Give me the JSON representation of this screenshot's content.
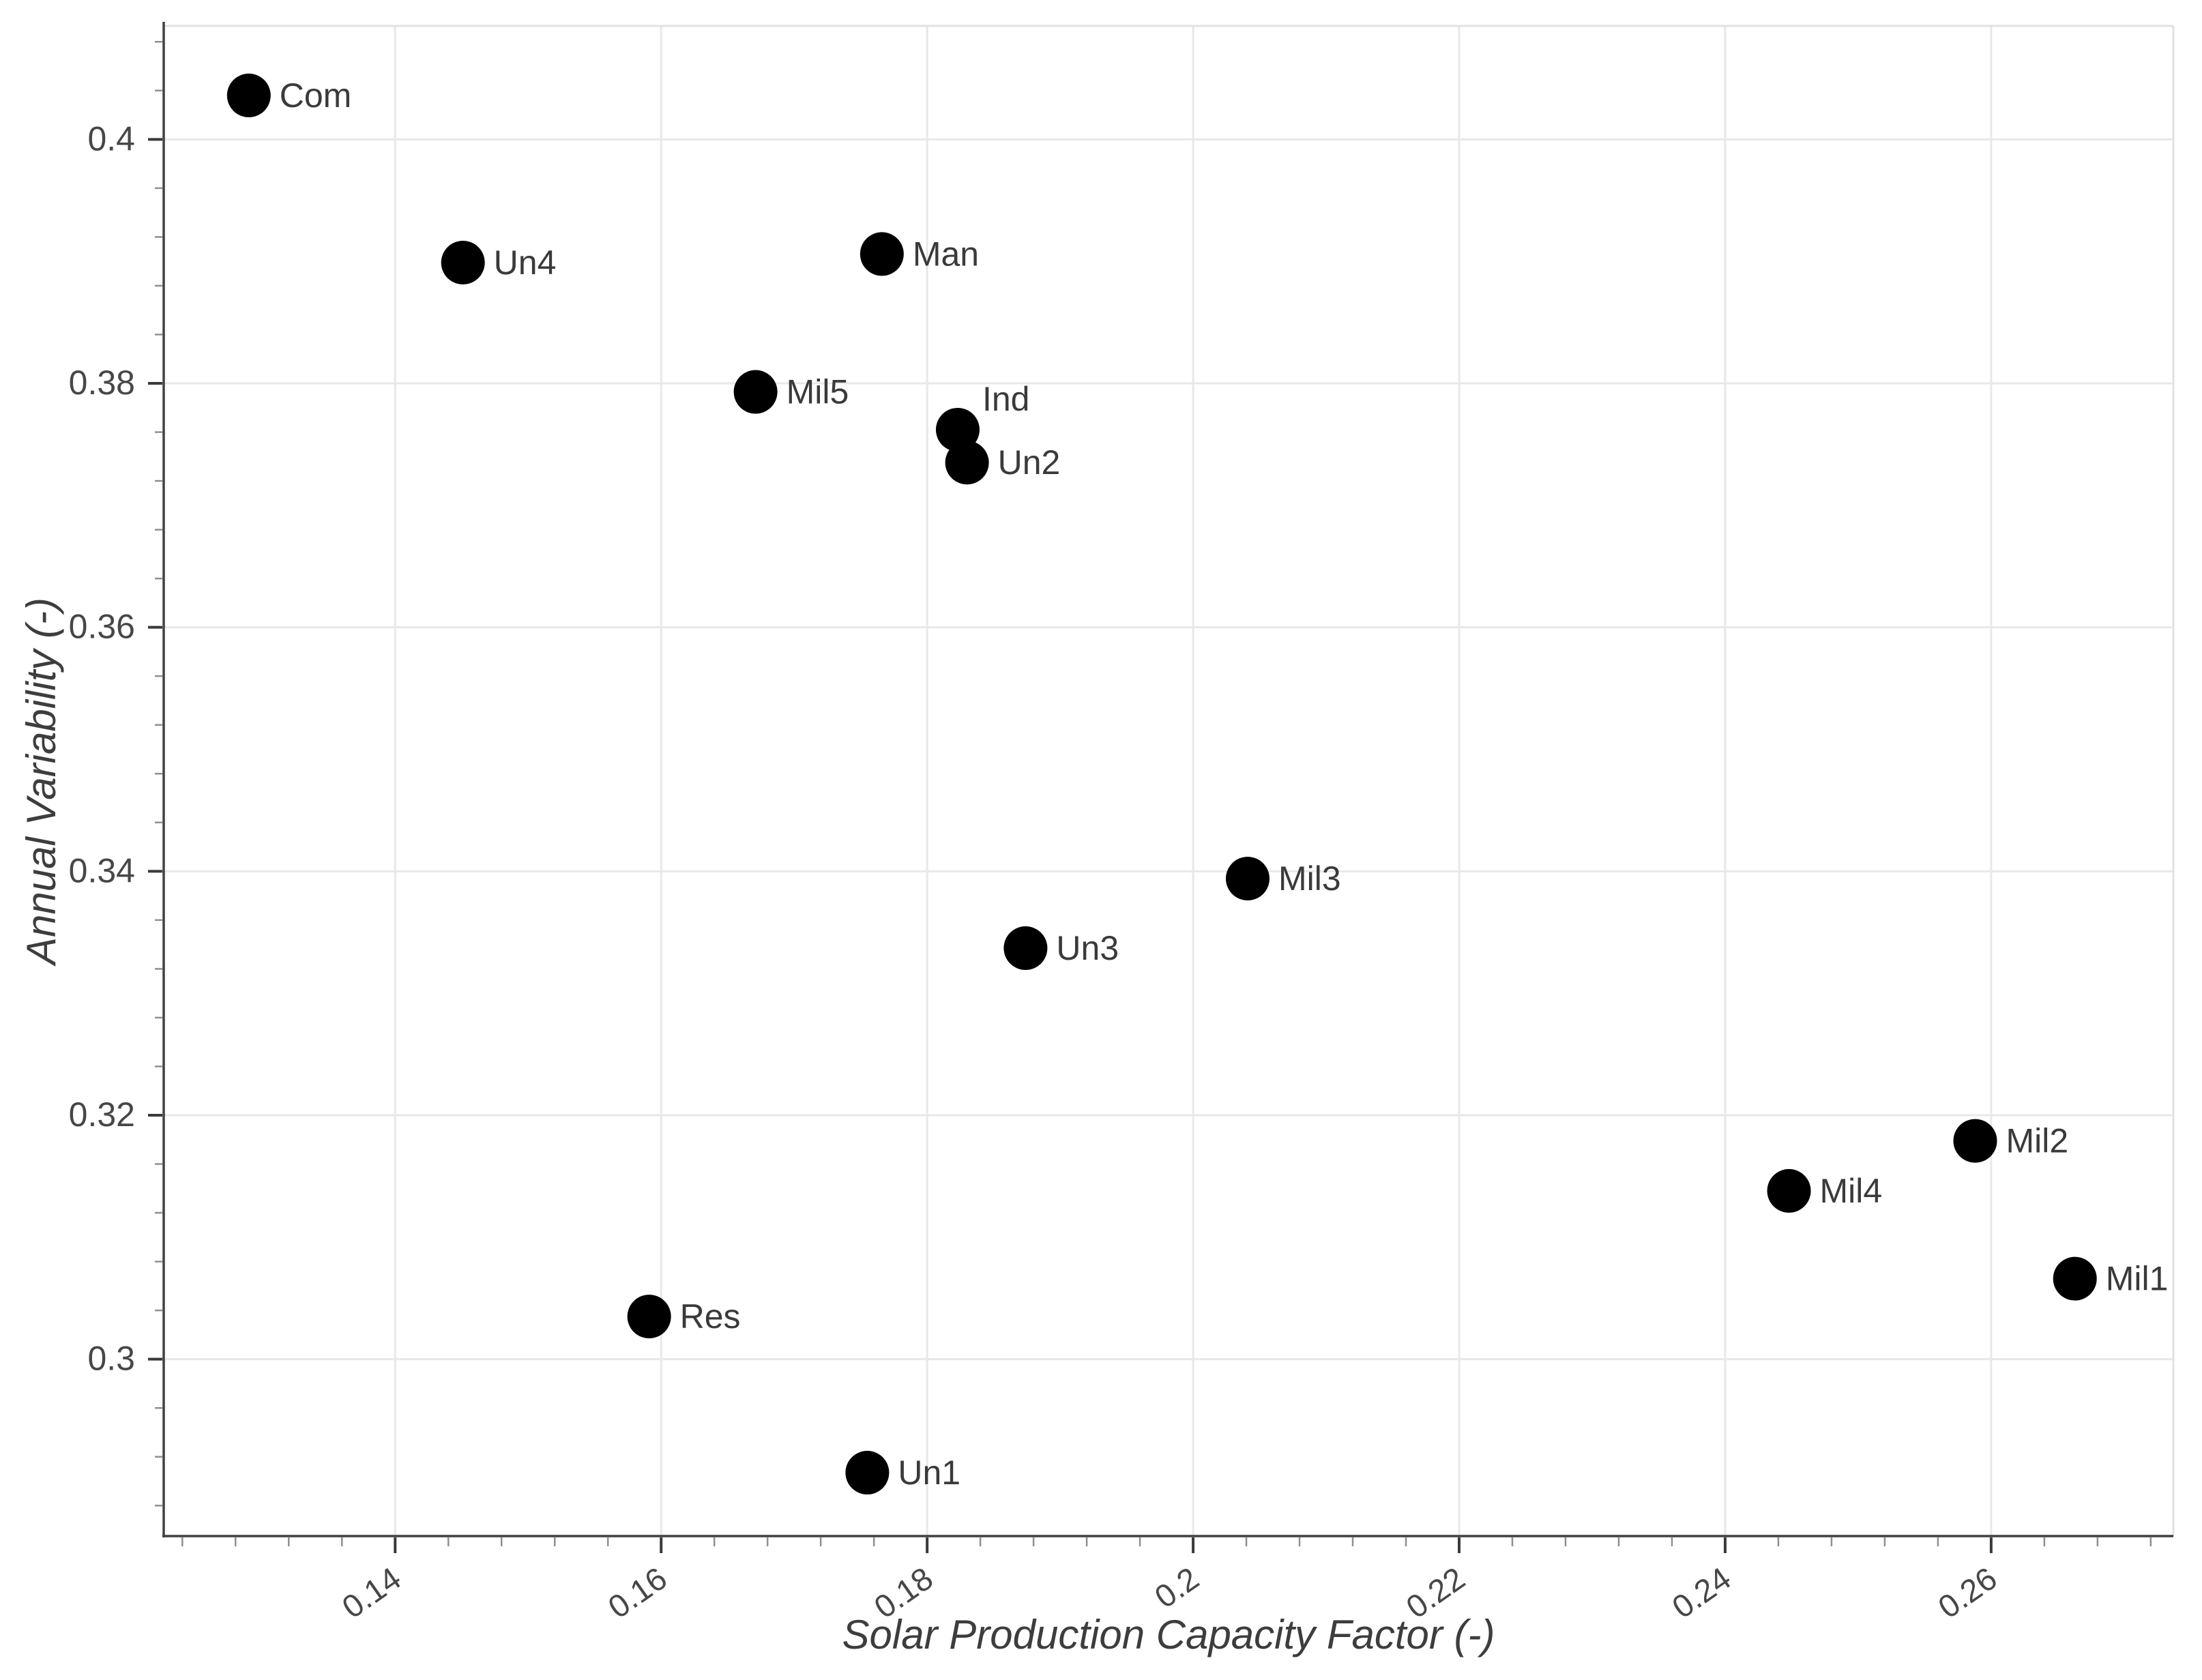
{
  "chart_data": {
    "type": "scatter",
    "title": "",
    "xlabel": "Solar Production Capacity Factor (-)",
    "ylabel": "Annual Variability (-)",
    "xlim": [
      0.1226,
      0.2737
    ],
    "ylim": [
      0.2855,
      0.4093
    ],
    "x_ticks": [
      0.14,
      0.16,
      0.18,
      0.2,
      0.22,
      0.24,
      0.26
    ],
    "x_tick_labels": [
      "0.14",
      "0.16",
      "0.18",
      "0.2",
      "0.22",
      "0.24",
      "0.26"
    ],
    "y_ticks": [
      0.3,
      0.32,
      0.34,
      0.36,
      0.38,
      0.4
    ],
    "y_tick_labels": [
      "0.3",
      "0.32",
      "0.34",
      "0.36",
      "0.38",
      "0.4"
    ],
    "minor_tick_step": 0.004,
    "x_tick_label_rotation_deg": -35,
    "grid": "major-both",
    "legend": "none",
    "points": [
      {
        "label": "Com",
        "x": 0.129,
        "y": 0.4036,
        "label_position": "right"
      },
      {
        "label": "Un4",
        "x": 0.1451,
        "y": 0.3899,
        "label_position": "right"
      },
      {
        "label": "Man",
        "x": 0.1766,
        "y": 0.3906,
        "label_position": "right"
      },
      {
        "label": "Mil5",
        "x": 0.1671,
        "y": 0.3793,
        "label_position": "right"
      },
      {
        "label": "Ind",
        "x": 0.1823,
        "y": 0.3762,
        "label_position": "top-right"
      },
      {
        "label": "Un2",
        "x": 0.183,
        "y": 0.3735,
        "label_position": "right"
      },
      {
        "label": "Mil3",
        "x": 0.2041,
        "y": 0.3394,
        "label_position": "right"
      },
      {
        "label": "Un3",
        "x": 0.1874,
        "y": 0.3337,
        "label_position": "right"
      },
      {
        "label": "Mil2",
        "x": 0.2588,
        "y": 0.3179,
        "label_position": "right"
      },
      {
        "label": "Mil4",
        "x": 0.2448,
        "y": 0.3138,
        "label_position": "right"
      },
      {
        "label": "Mil1",
        "x": 0.2663,
        "y": 0.3066,
        "label_position": "right"
      },
      {
        "label": "Res",
        "x": 0.1591,
        "y": 0.3035,
        "label_position": "right"
      },
      {
        "label": "Un1",
        "x": 0.1755,
        "y": 0.2907,
        "label_position": "right"
      }
    ]
  },
  "style": {
    "background_color": "#ffffff",
    "point_color": "#000000",
    "point_label_color": "#3a3a3a",
    "grid_color": "#e8e8e8",
    "panel_border_color": "#e2e2e2",
    "axis_line_color": "#414141",
    "major_tick_color": "#3a3a3a",
    "minor_tick_color": "#8f8f8f",
    "tick_label_color": "#474747",
    "axis_title_color": "#3d3d3d"
  }
}
